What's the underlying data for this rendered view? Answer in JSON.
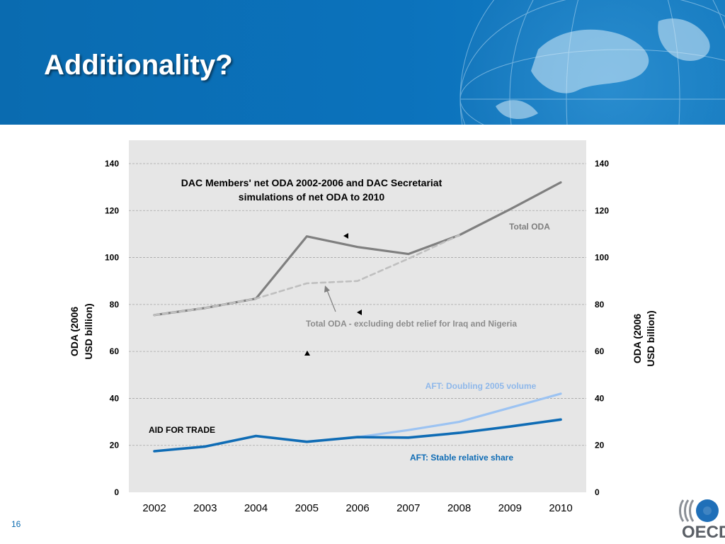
{
  "slide": {
    "title": "Additionality?",
    "page_number": "16"
  },
  "footer": {
    "logo_text": "OECD"
  },
  "colors": {
    "header_blue": "#0b72bc",
    "total_oda": "#7f7f7f",
    "oda_excl_debt_relief": "#bfbfbf",
    "aft_doubling": "#9cc3f2",
    "aft_stable": "#0f6cb5",
    "plot_background": "#e6e6e6"
  },
  "chart_data": {
    "type": "line",
    "title": "DAC Members' net ODA 2002-2006 and DAC Secretariat simulations of net ODA to 2010",
    "title_lines": [
      "DAC Members' net ODA 2002-2006 and DAC Secretariat",
      "simulations of net ODA to 2010"
    ],
    "ylabel_left": [
      "ODA (2006",
      "USD billion)"
    ],
    "ylabel_right": [
      "ODA (2006",
      "USD billion)"
    ],
    "categories": [
      "2002",
      "2003",
      "2004",
      "2005",
      "2006",
      "2007",
      "2008",
      "2009",
      "2010"
    ],
    "ylim": [
      0,
      140
    ],
    "yticks": [
      "0",
      "20",
      "40",
      "60",
      "80",
      "100",
      "120",
      "140"
    ],
    "grid": true,
    "series": [
      {
        "name": "Total ODA",
        "style": "solid",
        "values": [
          75.5,
          78.5,
          82.5,
          109,
          104.5,
          101.5,
          109.5,
          120.5,
          132
        ]
      },
      {
        "name": "Total ODA - excluding debt relief for Iraq and Nigeria",
        "style": "dashed",
        "values": [
          75.5,
          78.5,
          82.5,
          89,
          90,
          99.5,
          109.5,
          null,
          null
        ]
      },
      {
        "name": "AFT: Doubling 2005 volume",
        "style": "solid",
        "values": [
          null,
          null,
          null,
          null,
          23.5,
          26.5,
          30,
          36,
          42
        ]
      },
      {
        "name": "AFT: Stable relative share",
        "style": "solid-thick",
        "values": [
          17.5,
          19.5,
          24,
          21.5,
          23.5,
          23.3,
          25.3,
          28,
          31
        ]
      }
    ],
    "annotations": {
      "aid_for_trade": "AID FOR TRADE"
    }
  }
}
